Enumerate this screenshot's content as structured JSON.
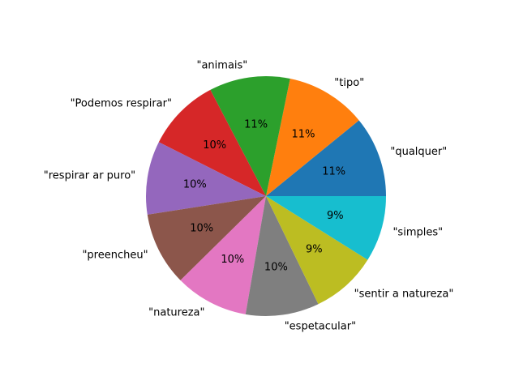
{
  "chart_data": {
    "type": "pie",
    "start_angle_deg": 0,
    "direction": "counterclockwise",
    "slices": [
      {
        "label": "\"qualquer\"",
        "value": 11,
        "pct_label": "11%",
        "color": "#1f77b4"
      },
      {
        "label": "\"tipo\"",
        "value": 11,
        "pct_label": "11%",
        "color": "#ff7f0e"
      },
      {
        "label": "\"animais\"",
        "value": 11,
        "pct_label": "11%",
        "color": "#2ca02c"
      },
      {
        "label": "\"Podemos respirar\"",
        "value": 10,
        "pct_label": "10%",
        "color": "#d62728"
      },
      {
        "label": "\"respirar ar puro\"",
        "value": 10,
        "pct_label": "10%",
        "color": "#9467bd"
      },
      {
        "label": "\"preencheu\"",
        "value": 10,
        "pct_label": "10%",
        "color": "#8c564b"
      },
      {
        "label": "\"natureza\"",
        "value": 10,
        "pct_label": "10%",
        "color": "#e377c2"
      },
      {
        "label": "\"espetacular\"",
        "value": 10,
        "pct_label": "10%",
        "color": "#7f7f7f"
      },
      {
        "label": "\"sentir a natureza\"",
        "value": 9,
        "pct_label": "9%",
        "color": "#bcbd22"
      },
      {
        "label": "\"simples\"",
        "value": 9,
        "pct_label": "9%",
        "color": "#17becf"
      }
    ]
  }
}
